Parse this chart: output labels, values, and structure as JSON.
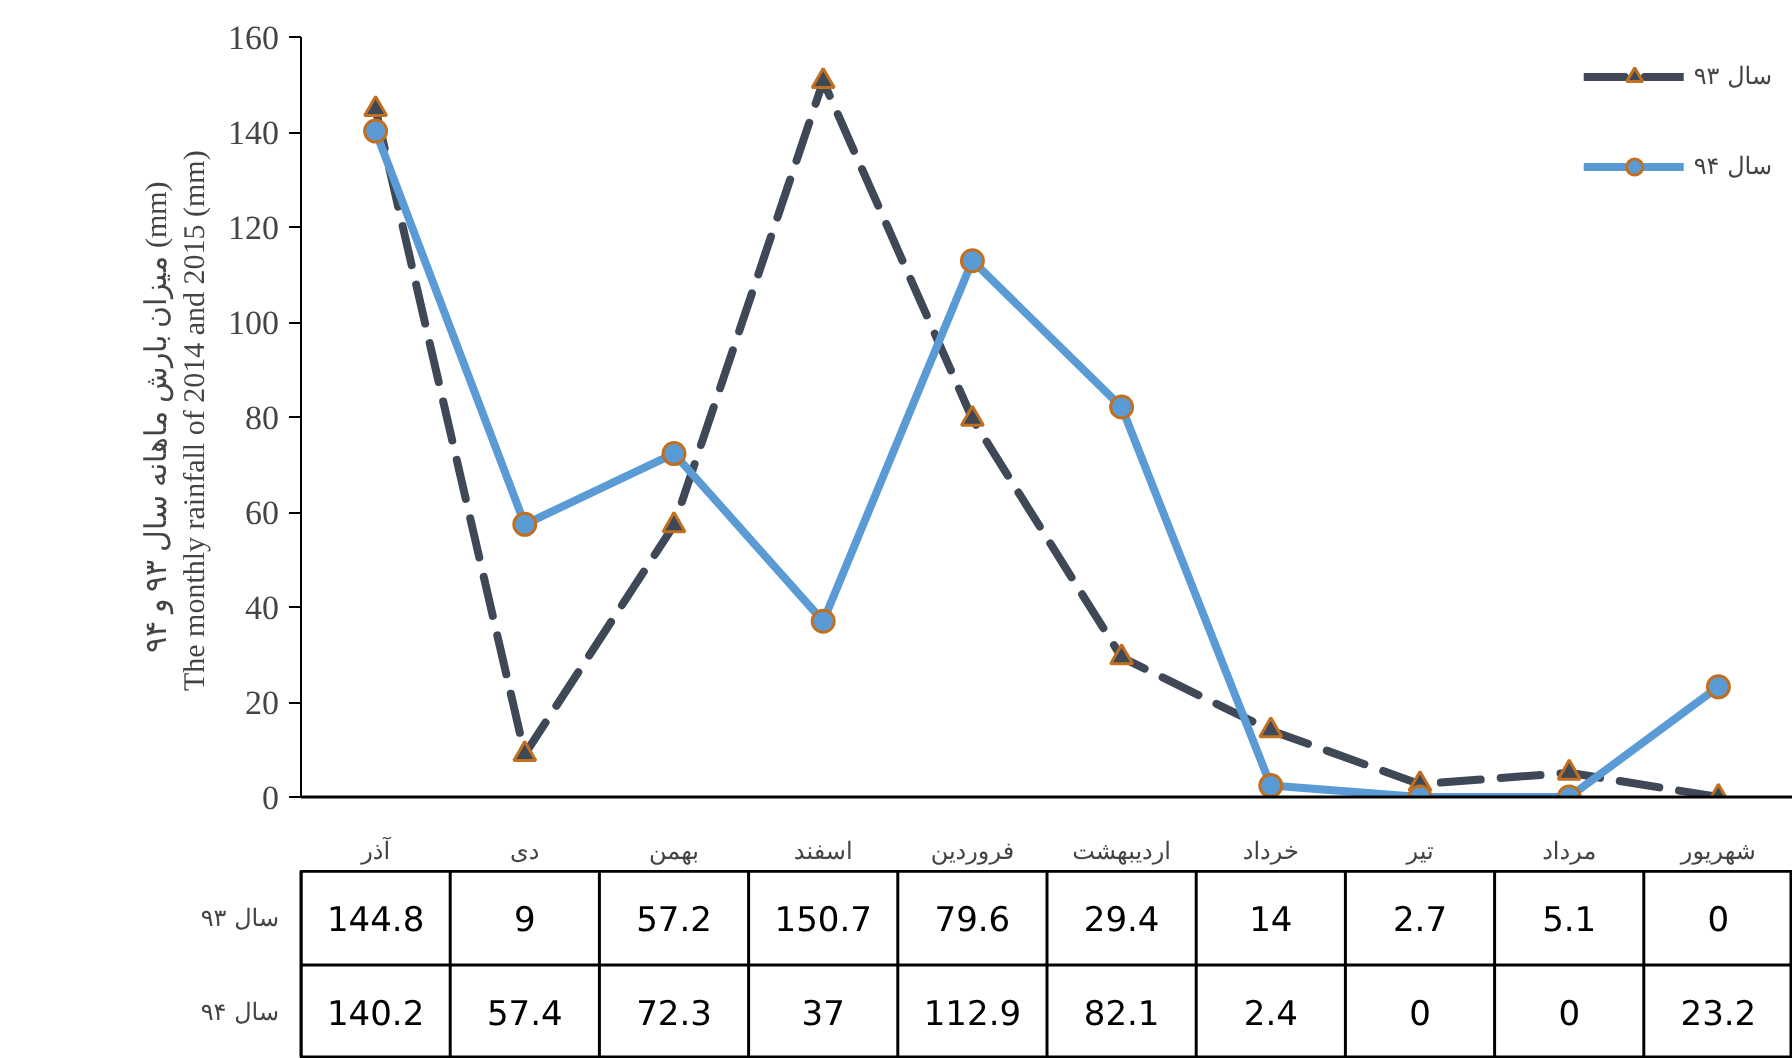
{
  "chart_data": {
    "type": "line",
    "ylabel": "میزان بارش ماهانه سال ۹۳ و ۹۴ (mm)\nThe monthly rainfall  of 2014 and 2015 (mm)",
    "categories": [
      "آذر",
      "دی",
      "بهمن",
      "اسفند",
      "فروردین",
      "اردیبهشت",
      "خرداد",
      "تیر",
      "مرداد",
      "شهریور"
    ],
    "series": [
      {
        "name": "سال ۹۳",
        "color": "#3f4856",
        "line_style": "dashed",
        "marker": "triangle",
        "values": [
          144.8,
          9,
          57.2,
          150.7,
          79.6,
          29.4,
          14,
          2.7,
          5.1,
          0
        ]
      },
      {
        "name": "سال ۹۴",
        "color": "#5b9bd5",
        "line_style": "solid",
        "marker": "circle",
        "values": [
          140.2,
          57.4,
          72.3,
          37,
          112.9,
          82.1,
          2.4,
          0,
          0,
          23.2
        ]
      }
    ],
    "ylim": [
      0,
      160
    ],
    "yticks": [
      0,
      20,
      40,
      60,
      80,
      100,
      120,
      140,
      160
    ],
    "grid": false,
    "legend": "top right",
    "data_labels": true
  }
}
